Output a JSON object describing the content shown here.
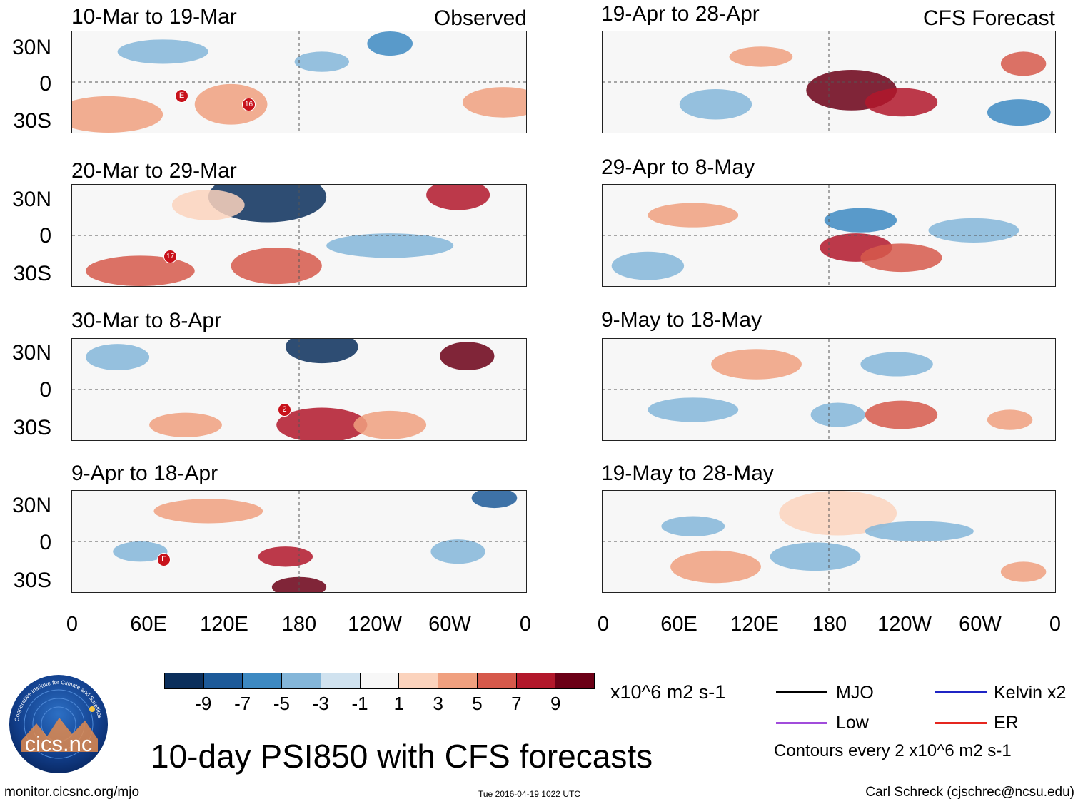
{
  "headers": {
    "left_tag": "Observed",
    "right_tag": "CFS Forecast"
  },
  "lat_labels": [
    "30N",
    "0",
    "30S"
  ],
  "lon_labels": [
    "0",
    "60E",
    "120E",
    "180",
    "120W",
    "60W",
    "0"
  ],
  "panels": {
    "left": [
      {
        "title": "10-Mar to 19-Mar",
        "markers": [
          "E",
          "16"
        ]
      },
      {
        "title": "20-Mar to 29-Mar",
        "markers": [
          "17"
        ]
      },
      {
        "title": "30-Mar to 8-Apr",
        "markers": [
          "2"
        ]
      },
      {
        "title": "9-Apr to 18-Apr",
        "markers": [
          "F"
        ]
      }
    ],
    "right": [
      {
        "title": "19-Apr to 28-Apr"
      },
      {
        "title": "29-Apr to 8-May"
      },
      {
        "title": "9-May to 18-May"
      },
      {
        "title": "19-May to 28-May"
      }
    ]
  },
  "colorbar": {
    "labels": [
      "-9",
      "-7",
      "-5",
      "-3",
      "-1",
      "1",
      "3",
      "5",
      "7",
      "9"
    ],
    "colors": [
      "#0b2f5c",
      "#1d5a99",
      "#3d89c2",
      "#84b6d9",
      "#d0e2ef",
      "#f7f7f7",
      "#fbd3bd",
      "#f0a07f",
      "#d6594b",
      "#b2182b",
      "#6b0016"
    ],
    "units": "x10^6 m2 s-1"
  },
  "legend": {
    "items": [
      {
        "label": "MJO",
        "color": "#000000"
      },
      {
        "label": "Kelvin x2",
        "color": "#1f24c4"
      },
      {
        "label": "Low",
        "color": "#a14cdb"
      },
      {
        "label": "ER",
        "color": "#e5261f"
      }
    ],
    "contour_note": "Contours every 2 x10^6 m2 s-1"
  },
  "logo": {
    "text": "cics.nc",
    "ring_text": "Cooperative Institute for Climate and Satellites"
  },
  "main_title": "10-day PSI850 with CFS forecasts",
  "footer": {
    "url": "monitor.cicsnc.org/mjo",
    "timestamp": "Tue 2016-04-19 1022 UTC",
    "author": "Carl Schreck (cjschrec@ncsu.edu)"
  }
}
